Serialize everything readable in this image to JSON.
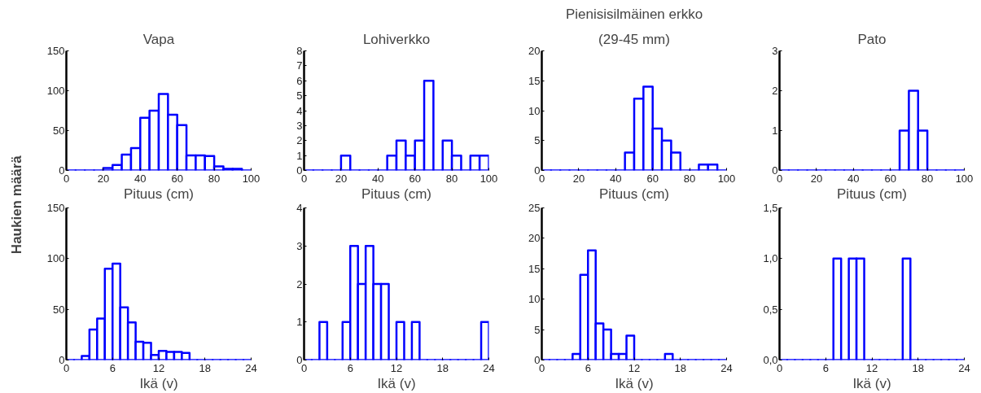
{
  "chart_data": [
    {
      "type": "histogram",
      "title": "Vapa",
      "xlabel": "Pituus (cm)",
      "ylabel": "Haukien määrä",
      "color": "#0000ff",
      "bins": [
        0,
        5,
        10,
        15,
        20,
        25,
        30,
        35,
        40,
        45,
        50,
        55,
        60,
        65,
        70,
        75,
        80,
        85,
        90,
        95,
        100
      ],
      "values": [
        0,
        0,
        0,
        0,
        3,
        7,
        20,
        28,
        66,
        75,
        96,
        70,
        57,
        19,
        19,
        18,
        5,
        2,
        2,
        0
      ],
      "xlim": [
        0,
        100
      ],
      "xticks": [
        0,
        20,
        40,
        60,
        80,
        100
      ],
      "ylim": [
        0,
        150
      ],
      "yticks": [
        0,
        50,
        100,
        150
      ]
    },
    {
      "type": "histogram",
      "title": "Lohiverkko",
      "xlabel": "Pituus (cm)",
      "color": "#0000ff",
      "bins": [
        0,
        5,
        10,
        15,
        20,
        25,
        30,
        35,
        40,
        45,
        50,
        55,
        60,
        65,
        70,
        75,
        80,
        85,
        90,
        95,
        100
      ],
      "values": [
        0,
        0,
        0,
        0,
        1,
        0,
        0,
        0,
        0,
        1,
        2,
        1,
        2,
        6,
        0,
        2,
        1,
        0,
        1,
        1
      ],
      "xlim": [
        0,
        100
      ],
      "xticks": [
        0,
        20,
        40,
        60,
        80,
        100
      ],
      "ylim": [
        0,
        8
      ],
      "yticks": [
        0,
        1,
        2,
        3,
        4,
        5,
        6,
        7,
        8
      ]
    },
    {
      "type": "histogram",
      "title": "Pienisisilmäinen erkko",
      "subtitle": "(29-45 mm)",
      "xlabel": "Pituus (cm)",
      "color": "#0000ff",
      "bins": [
        0,
        5,
        10,
        15,
        20,
        25,
        30,
        35,
        40,
        45,
        50,
        55,
        60,
        65,
        70,
        75,
        80,
        85,
        90,
        95,
        100
      ],
      "values": [
        0,
        0,
        0,
        0,
        0,
        0,
        0,
        0,
        0,
        3,
        12,
        14,
        7,
        5,
        3,
        0,
        0,
        1,
        1,
        0
      ],
      "xlim": [
        0,
        100
      ],
      "xticks": [
        0,
        20,
        40,
        60,
        80,
        100
      ],
      "ylim": [
        0,
        20
      ],
      "yticks": [
        0,
        5,
        10,
        15,
        20
      ]
    },
    {
      "type": "histogram",
      "title": "Pato",
      "xlabel": "Pituus (cm)",
      "color": "#0000ff",
      "bins": [
        0,
        5,
        10,
        15,
        20,
        25,
        30,
        35,
        40,
        45,
        50,
        55,
        60,
        65,
        70,
        75,
        80,
        85,
        90,
        95,
        100
      ],
      "values": [
        0,
        0,
        0,
        0,
        0,
        0,
        0,
        0,
        0,
        0,
        0,
        0,
        0,
        1,
        2,
        1,
        0,
        0,
        0,
        0
      ],
      "xlim": [
        0,
        100
      ],
      "xticks": [
        0,
        20,
        40,
        60,
        80,
        100
      ],
      "ylim": [
        0,
        3
      ],
      "yticks": [
        0,
        1,
        2,
        3
      ]
    },
    {
      "type": "histogram",
      "xlabel": "Ikä (v)",
      "color": "#0000ff",
      "bins": [
        0,
        1,
        2,
        3,
        4,
        5,
        6,
        7,
        8,
        9,
        10,
        11,
        12,
        13,
        14,
        15,
        16,
        17,
        18,
        19,
        20,
        21,
        22,
        23,
        24
      ],
      "values": [
        0,
        0,
        4,
        30,
        41,
        90,
        95,
        52,
        37,
        18,
        17,
        5,
        9,
        8,
        8,
        7,
        0,
        0,
        0,
        0,
        0,
        0,
        0,
        0
      ],
      "xlim": [
        0,
        24
      ],
      "xticks": [
        0,
        6,
        12,
        18,
        24
      ],
      "ylim": [
        0,
        150
      ],
      "yticks": [
        0,
        50,
        100,
        150
      ]
    },
    {
      "type": "histogram",
      "xlabel": "Ikä (v)",
      "color": "#0000ff",
      "bins": [
        0,
        1,
        2,
        3,
        4,
        5,
        6,
        7,
        8,
        9,
        10,
        11,
        12,
        13,
        14,
        15,
        16,
        17,
        18,
        19,
        20,
        21,
        22,
        23,
        24
      ],
      "values": [
        0,
        0,
        1,
        0,
        0,
        1,
        3,
        2,
        3,
        2,
        2,
        0,
        1,
        0,
        1,
        0,
        0,
        0,
        0,
        0,
        0,
        0,
        0,
        1
      ],
      "xlim": [
        0,
        24
      ],
      "xticks": [
        0,
        6,
        12,
        18,
        24
      ],
      "ylim": [
        0,
        4
      ],
      "yticks": [
        0,
        1,
        2,
        3,
        4
      ]
    },
    {
      "type": "histogram",
      "xlabel": "Ikä (v)",
      "color": "#0000ff",
      "bins": [
        0,
        1,
        2,
        3,
        4,
        5,
        6,
        7,
        8,
        9,
        10,
        11,
        12,
        13,
        14,
        15,
        16,
        17,
        18,
        19,
        20,
        21,
        22,
        23,
        24
      ],
      "values": [
        0,
        0,
        0,
        0,
        1,
        14,
        18,
        6,
        5,
        1,
        1,
        4,
        0,
        0,
        0,
        0,
        1,
        0,
        0,
        0,
        0,
        0,
        0,
        0
      ],
      "xlim": [
        0,
        24
      ],
      "xticks": [
        0,
        6,
        12,
        18,
        24
      ],
      "ylim": [
        0,
        25
      ],
      "yticks": [
        0,
        5,
        10,
        15,
        20,
        25
      ]
    },
    {
      "type": "histogram",
      "xlabel": "Ikä (v)",
      "color": "#0000ff",
      "bins": [
        0,
        1,
        2,
        3,
        4,
        5,
        6,
        7,
        8,
        9,
        10,
        11,
        12,
        13,
        14,
        15,
        16,
        17,
        18,
        19,
        20,
        21,
        22,
        23,
        24
      ],
      "values": [
        0,
        0,
        0,
        0,
        0,
        0,
        0,
        1,
        0,
        1,
        1,
        0,
        0,
        0,
        0,
        0,
        1,
        0,
        0,
        0,
        0,
        0,
        0,
        0
      ],
      "xlim": [
        0,
        24
      ],
      "xticks": [
        0,
        6,
        12,
        18,
        24
      ],
      "ylim": [
        0,
        1.5
      ],
      "yticks": [
        {
          "value": 0,
          "label": "0,0"
        },
        {
          "value": 0.5,
          "label": "0,5"
        },
        {
          "value": 1,
          "label": "1,0"
        },
        {
          "value": 1.5,
          "label": "1,5"
        }
      ]
    }
  ]
}
